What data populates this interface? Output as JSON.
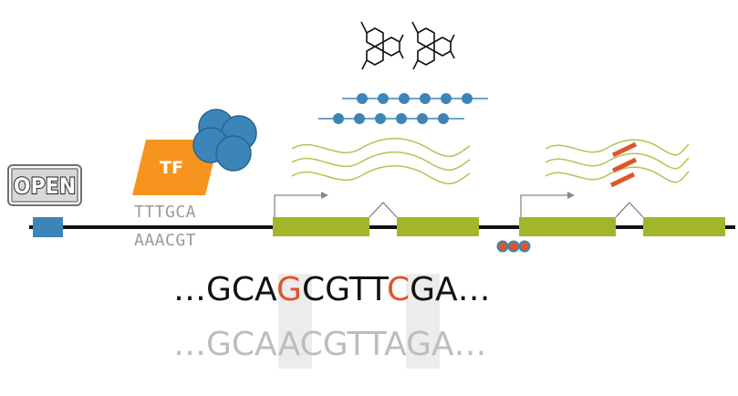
{
  "open_sign": {
    "label": "OPEN"
  },
  "transcription_factor": {
    "label": "TF"
  },
  "binding_motif": {
    "top_strand": "TTTGCA",
    "bottom_strand": "AAACGT"
  },
  "sequence_top": {
    "prefix": "…GCA",
    "variant_1": "G",
    "middle": "CGTT",
    "variant_2": "C",
    "suffix": "GA…"
  },
  "sequence_bottom": {
    "prefix": "…GCA",
    "variant_1": "A",
    "middle": "CGTT",
    "variant_2": "A",
    "suffix": "GA…"
  },
  "colors": {
    "exon": "#a3b52a",
    "transcript": "#b9c85a",
    "protein_bead": "#3d85b8",
    "tf_body": "#f7941d",
    "variant": "#e0552a",
    "regulatory_element": "#3d85b8",
    "highlight_column": "#ececec"
  },
  "icons": {
    "metabolite": "metabolite-structure-icon",
    "chromatin": "open-chromatin-sign-icon",
    "methylation": "methylation-marks-icon",
    "rna_break": "rna-interference-icon"
  }
}
